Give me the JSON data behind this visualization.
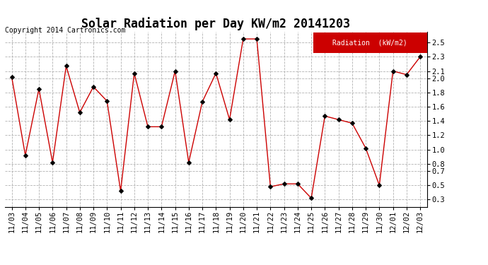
{
  "title": "Solar Radiation per Day KW/m2 20141203",
  "copyright": "Copyright 2014 Cartronics.com",
  "legend_label": "Radiation  (kW/m2)",
  "dates": [
    "11/03",
    "11/04",
    "11/05",
    "11/06",
    "11/07",
    "11/08",
    "11/09",
    "11/10",
    "11/11",
    "11/12",
    "11/13",
    "11/14",
    "11/15",
    "11/16",
    "11/17",
    "11/18",
    "11/19",
    "11/20",
    "11/21",
    "11/22",
    "11/23",
    "11/24",
    "11/25",
    "11/26",
    "11/27",
    "11/28",
    "11/29",
    "11/30",
    "12/01",
    "12/02",
    "12/03"
  ],
  "values": [
    2.02,
    0.92,
    1.85,
    0.82,
    2.17,
    1.52,
    1.88,
    1.68,
    0.42,
    2.07,
    1.32,
    1.32,
    2.1,
    0.82,
    1.67,
    2.07,
    1.42,
    2.55,
    2.55,
    0.48,
    0.52,
    0.52,
    0.32,
    1.47,
    1.42,
    1.37,
    1.02,
    0.5,
    2.1,
    2.05,
    2.3
  ],
  "line_color": "#cc0000",
  "marker_color": "#000000",
  "bg_color": "#ffffff",
  "grid_color": "#aaaaaa",
  "ylim": [
    0.2,
    2.65
  ],
  "yticks": [
    0.3,
    0.5,
    0.7,
    0.8,
    1.0,
    1.2,
    1.4,
    1.6,
    1.8,
    2.0,
    2.1,
    2.3,
    2.5
  ],
  "ytick_labels": [
    "0.3",
    "0.5",
    "0.7",
    "0.8",
    "1.0",
    "1.2",
    "1.4",
    "1.6",
    "1.8",
    "2.0",
    "2.1",
    "2.3",
    "2.5"
  ],
  "legend_bg": "#cc0000",
  "legend_text_color": "#ffffff",
  "title_fontsize": 12,
  "tick_fontsize": 7.5,
  "copyright_fontsize": 7
}
